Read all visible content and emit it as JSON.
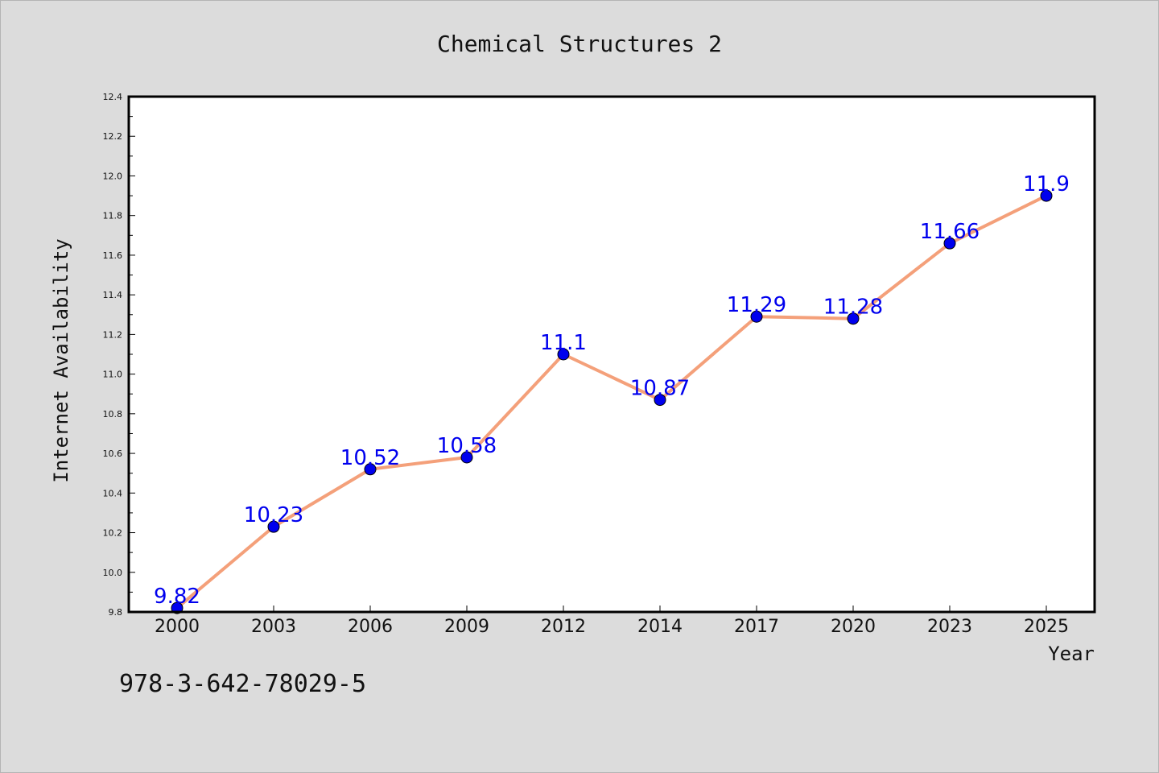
{
  "chart_data": {
    "type": "line",
    "title": "Chemical Structures 2",
    "xlabel": "Year",
    "ylabel": "Internet Availability",
    "categories": [
      "2000",
      "2003",
      "2006",
      "2009",
      "2012",
      "2014",
      "2017",
      "2020",
      "2023",
      "2025"
    ],
    "series": [
      {
        "values": [
          9.82,
          10.23,
          10.52,
          10.58,
          11.1,
          10.87,
          11.29,
          11.28,
          11.66,
          11.9
        ],
        "data_labels": [
          "9.82",
          "10.23",
          "10.52",
          "10.58",
          "11.1",
          "10.87",
          "11.29",
          "11.28",
          "11.66",
          "11.9"
        ],
        "line_color": "#f4a07a",
        "marker_color": "#0000ee"
      }
    ],
    "yticks": [
      "9.8",
      "10.0",
      "10.2",
      "10.4",
      "10.6",
      "10.8",
      "11.0",
      "11.2",
      "11.4",
      "11.6",
      "11.8",
      "12.0",
      "12.2",
      "12.4"
    ],
    "ylim": [
      9.8,
      12.4
    ],
    "grid": false,
    "legend": "none"
  },
  "footer": {
    "code": "978-3-642-78029-5"
  },
  "colors": {
    "background": "#dcdcdc",
    "plot_background": "#ffffff",
    "line": "#f4a07a",
    "marker": "#0000ee",
    "data_label": "#0000ee"
  }
}
